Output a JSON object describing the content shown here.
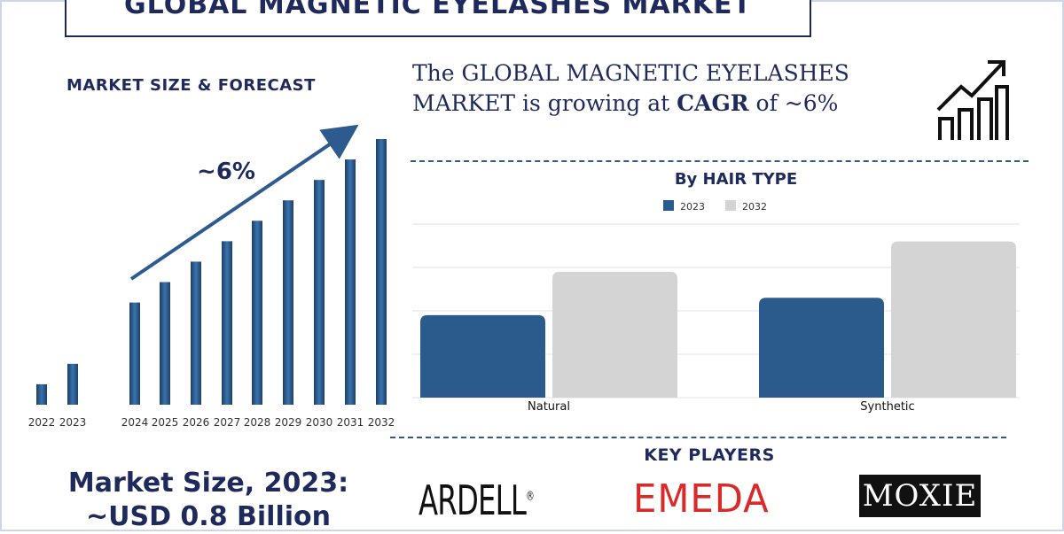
{
  "header": {
    "title": "GLOBAL MAGNETIC EYELASHES MARKET"
  },
  "left_panel": {
    "subtitle": "MARKET SIZE & FORECAST",
    "growth_label": "~6%",
    "market_size_line1": "Market Size, 2023:",
    "market_size_line2": "~USD 0.8 Billion"
  },
  "headline": {
    "prefix": "The GLOBAL MAGNETIC EYELASHES MARKET is growing at ",
    "bold": "CAGR",
    "suffix": " of ~6%"
  },
  "icons": {
    "trend": "bar-chart-trend-up-icon"
  },
  "colors": {
    "navy": "#1f2a5c",
    "bar_blue": "#2b5a8c",
    "light_grey": "#d4d4d4",
    "accent_red": "#d92a2a"
  },
  "key_players": {
    "title": "KEY PLAYERS",
    "logos": [
      "ARDELL",
      "EMEDA",
      "MOXIE"
    ]
  },
  "chart_data": [
    {
      "type": "bar",
      "title": "",
      "categories": [
        "2022",
        "2023",
        "2024",
        "2025",
        "2026",
        "2027",
        "2028",
        "2029",
        "2030",
        "2031",
        "2032"
      ],
      "values": [
        1.0,
        2.0,
        5.0,
        6.0,
        7.0,
        8.0,
        9.0,
        10.0,
        11.0,
        12.0,
        13.0
      ],
      "annotation": "~6%",
      "grid": false
    },
    {
      "type": "bar",
      "title": "By HAIR TYPE",
      "categories": [
        "Natural",
        "Synthetic"
      ],
      "series": [
        {
          "name": "2023",
          "values": [
            1.9,
            2.3
          ],
          "color": "#2b5a8c"
        },
        {
          "name": "2032",
          "values": [
            2.9,
            3.6
          ],
          "color": "#d4d4d4"
        }
      ],
      "ylim": [
        0,
        4
      ],
      "grid": true,
      "legend": "top-center"
    }
  ]
}
